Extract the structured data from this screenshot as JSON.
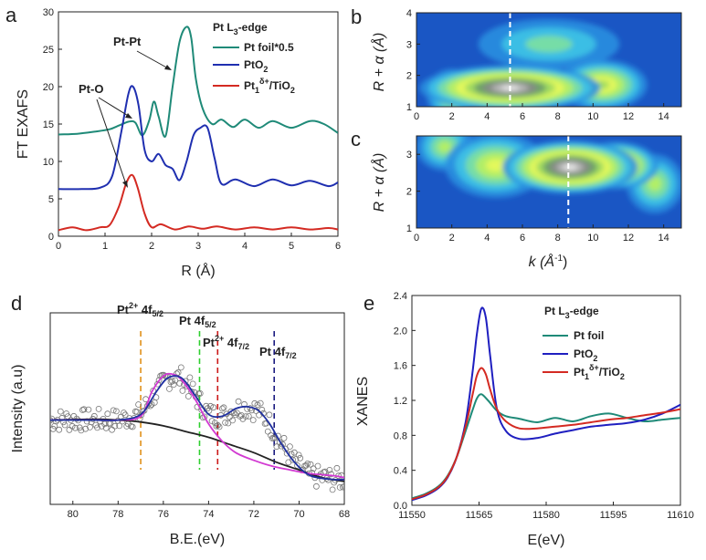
{
  "chart_data": [
    {
      "panel": "a",
      "type": "line",
      "title": "Pt L3-edge",
      "xlabel": "R (Å)",
      "ylabel": "FT EXAFS",
      "xlim": [
        0,
        6
      ],
      "ylim": [
        0,
        30
      ],
      "xticks": [
        "0",
        "1",
        "2",
        "3",
        "4",
        "5",
        "6"
      ],
      "yticks": [
        "0",
        "5",
        "10",
        "15",
        "20",
        "25",
        "30"
      ],
      "series": [
        {
          "name": "Pt foil*0.5",
          "color": "#1f8a78",
          "x": [
            0.0,
            0.4,
            0.8,
            1.1,
            1.3,
            1.5,
            1.65,
            1.8,
            1.95,
            2.05,
            2.15,
            2.3,
            2.45,
            2.6,
            2.75,
            2.85,
            2.95,
            3.1,
            3.3,
            3.5,
            3.75,
            4.0,
            4.3,
            4.6,
            5.0,
            5.4,
            5.7,
            6.0
          ],
          "y": [
            13.6,
            13.7,
            14.0,
            14.3,
            14.8,
            15.3,
            15.2,
            13.5,
            15.5,
            18.0,
            16.0,
            13.4,
            20.0,
            26.0,
            28.0,
            26.5,
            21.0,
            17.0,
            15.0,
            15.6,
            14.6,
            15.6,
            14.5,
            15.4,
            14.5,
            15.4,
            15.0,
            13.8
          ]
        },
        {
          "name": "PtO2",
          "color": "#1f2fb0",
          "x": [
            0.0,
            0.5,
            0.9,
            1.15,
            1.35,
            1.5,
            1.6,
            1.72,
            1.85,
            2.0,
            2.15,
            2.3,
            2.45,
            2.6,
            2.75,
            2.9,
            3.05,
            3.2,
            3.35,
            3.5,
            3.8,
            4.2,
            4.6,
            5.0,
            5.4,
            5.8,
            6.0
          ],
          "y": [
            6.3,
            6.3,
            6.5,
            8.0,
            14.0,
            19.0,
            20.0,
            17.5,
            11.5,
            10.0,
            11.0,
            9.5,
            9.0,
            7.5,
            10.0,
            13.5,
            14.5,
            14.5,
            10.5,
            7.0,
            7.6,
            6.7,
            7.6,
            6.8,
            7.4,
            6.7,
            7.2
          ]
        },
        {
          "name": "Pt1δ+/TiO2",
          "color": "#d42a22",
          "x": [
            0.0,
            0.3,
            0.6,
            0.9,
            1.1,
            1.3,
            1.45,
            1.58,
            1.7,
            1.85,
            2.0,
            2.2,
            2.5,
            2.8,
            3.1,
            3.4,
            3.8,
            4.2,
            4.6,
            5.0,
            5.4,
            5.8,
            6.0
          ],
          "y": [
            0.8,
            1.2,
            0.8,
            1.2,
            1.5,
            4.0,
            7.0,
            8.2,
            6.5,
            3.0,
            1.2,
            1.6,
            0.9,
            1.3,
            1.0,
            1.3,
            0.9,
            1.2,
            0.9,
            1.2,
            0.9,
            1.1,
            0.9
          ]
        }
      ],
      "annotations": [
        "Pt-Pt",
        "Pt-O"
      ]
    },
    {
      "panel": "b",
      "type": "heatmap",
      "ylabel": "R + α (Å)",
      "xlim": [
        0,
        15
      ],
      "ylim": [
        1,
        4
      ],
      "xticks": [
        "0",
        "2",
        "4",
        "6",
        "8",
        "10",
        "12",
        "14"
      ],
      "yticks": [
        "1",
        "2",
        "3",
        "4"
      ],
      "marker_k": 5.3,
      "blobs": [
        {
          "k": 5.3,
          "r": 1.6,
          "sk": 3.2,
          "sr": 0.45,
          "a": 1.0
        },
        {
          "k": 10.5,
          "r": 1.7,
          "sk": 1.6,
          "sr": 0.5,
          "a": 0.55
        },
        {
          "k": 2.0,
          "r": 1.4,
          "sk": 0.9,
          "sr": 0.5,
          "a": 0.45
        },
        {
          "k": 7.5,
          "r": 3.0,
          "sk": 2.5,
          "sr": 0.5,
          "a": 0.25
        }
      ]
    },
    {
      "panel": "c",
      "type": "heatmap",
      "xlabel": "k (Å-1)",
      "ylabel": "R + α (Å)",
      "xlim": [
        0,
        15
      ],
      "ylim": [
        1,
        3.5
      ],
      "xticks": [
        "0",
        "2",
        "4",
        "6",
        "8",
        "10",
        "12",
        "14"
      ],
      "yticks": [
        "1",
        "2",
        "3"
      ],
      "marker_k": 8.6,
      "blobs": [
        {
          "k": 8.7,
          "r": 2.65,
          "sk": 2.4,
          "sr": 0.45,
          "a": 1.0
        },
        {
          "k": 11.3,
          "r": 2.7,
          "sk": 1.5,
          "sr": 0.4,
          "a": 0.8
        },
        {
          "k": 4.5,
          "r": 2.7,
          "sk": 1.8,
          "sr": 0.55,
          "a": 0.5
        },
        {
          "k": 1.6,
          "r": 3.2,
          "sk": 1.0,
          "sr": 0.4,
          "a": 0.35
        },
        {
          "k": 13.5,
          "r": 2.2,
          "sk": 1.0,
          "sr": 0.5,
          "a": 0.35
        }
      ]
    },
    {
      "panel": "d",
      "type": "scatter",
      "xlabel": "B.E.(eV)",
      "ylabel": "Intensity (a.u)",
      "xlim": [
        81,
        68
      ],
      "ylim": [
        0,
        100
      ],
      "xticks": [
        "80",
        "78",
        "76",
        "74",
        "72",
        "70",
        "68"
      ],
      "reference_lines": [
        {
          "label": "Pt2+ 4f5/2",
          "x": 77.0,
          "color": "#e0901a"
        },
        {
          "label": "Pt 4f5/2",
          "x": 74.4,
          "color": "#2fcf2f"
        },
        {
          "label": "Pt2+ 4f7/2",
          "x": 73.6,
          "color": "#cc1a1a"
        },
        {
          "label": "Pt 4f7/2",
          "x": 71.1,
          "color": "#1a1a80"
        }
      ],
      "fit_magenta": {
        "x": [
          81,
          79,
          78,
          77,
          76.5,
          76,
          75.6,
          75.2,
          74.6,
          74,
          73.4,
          72.8,
          72,
          71.2,
          70.4,
          69.5,
          68.5,
          68
        ],
        "y": [
          44,
          44,
          44,
          46,
          59,
          67,
          68,
          65,
          55,
          42,
          33,
          27,
          23,
          20,
          18,
          16,
          15,
          14
        ]
      },
      "fit_blue": {
        "x": [
          81,
          79,
          78,
          77,
          76.3,
          75.8,
          75.2,
          74.6,
          74,
          73.4,
          72.8,
          72.3,
          71.8,
          71.3,
          70.8,
          70.2,
          69.5,
          68.5,
          68
        ],
        "y": [
          44,
          44,
          44,
          47,
          59,
          66,
          66,
          57,
          47,
          46,
          50,
          51,
          49,
          42,
          32,
          22,
          15,
          13,
          13
        ]
      },
      "background_black": {
        "x": [
          81,
          79,
          78,
          77,
          76,
          75,
          74,
          73,
          72,
          71,
          70,
          69,
          68
        ],
        "y": [
          44,
          44.5,
          44,
          43,
          41,
          38,
          35,
          31,
          27,
          22,
          18,
          14,
          12
        ]
      },
      "points_range": [
        81,
        68
      ]
    },
    {
      "panel": "e",
      "type": "line",
      "title": "Pt L3-edge",
      "xlabel": "E(eV)",
      "ylabel": "XANES",
      "xlim": [
        11550,
        11610
      ],
      "ylim": [
        0,
        2.4
      ],
      "xticks": [
        "11550",
        "11565",
        "11580",
        "11595",
        "11610"
      ],
      "yticks": [
        "0.0",
        "0.4",
        "0.8",
        "1.2",
        "1.6",
        "2.0",
        "2.4"
      ],
      "series": [
        {
          "name": "Pt foil",
          "color": "#1f8a78",
          "x": [
            11550,
            11553,
            11556,
            11558,
            11560,
            11562,
            11563.5,
            11564.5,
            11565.5,
            11567,
            11569,
            11571,
            11574,
            11578,
            11582,
            11586,
            11590,
            11594,
            11598,
            11602,
            11606,
            11610
          ],
          "y": [
            0.08,
            0.13,
            0.22,
            0.34,
            0.55,
            0.85,
            1.08,
            1.22,
            1.27,
            1.2,
            1.08,
            1.02,
            0.99,
            0.95,
            1.0,
            0.96,
            1.02,
            1.05,
            1.0,
            0.96,
            0.98,
            1.0
          ]
        },
        {
          "name": "PtO2",
          "color": "#1f1fc0",
          "x": [
            11550,
            11553,
            11556,
            11558,
            11560,
            11562,
            11563.5,
            11564.5,
            11565.5,
            11566.5,
            11567.5,
            11569,
            11571,
            11574,
            11578,
            11582,
            11586,
            11590,
            11594,
            11598,
            11602,
            11606,
            11610
          ],
          "y": [
            0.06,
            0.11,
            0.2,
            0.32,
            0.55,
            0.95,
            1.5,
            1.95,
            2.25,
            2.15,
            1.7,
            1.1,
            0.85,
            0.76,
            0.77,
            0.82,
            0.86,
            0.9,
            0.92,
            0.94,
            0.98,
            1.05,
            1.15
          ]
        },
        {
          "name": "Pt1δ+/TiO2",
          "color": "#d42a22",
          "x": [
            11550,
            11553,
            11556,
            11558,
            11560,
            11562,
            11563.5,
            11564.5,
            11565.5,
            11566.5,
            11567.5,
            11569,
            11571,
            11574,
            11578,
            11582,
            11586,
            11590,
            11594,
            11598,
            11602,
            11606,
            11610
          ],
          "y": [
            0.07,
            0.12,
            0.21,
            0.33,
            0.55,
            0.9,
            1.25,
            1.48,
            1.57,
            1.5,
            1.32,
            1.1,
            0.96,
            0.88,
            0.88,
            0.9,
            0.92,
            0.95,
            0.98,
            1.0,
            1.03,
            1.06,
            1.1
          ]
        }
      ]
    }
  ],
  "labels": {
    "panel_a": "a",
    "panel_b": "b",
    "panel_c": "c",
    "panel_d": "d",
    "panel_e": "e",
    "a_title": "Pt L",
    "a_title_sub": "3",
    "a_title_end": "-edge",
    "a_leg1": "Pt foil*0.5",
    "a_leg2": "PtO",
    "a_leg2_sub": "2",
    "a_leg3_base": "Pt",
    "a_leg3_sub": "1",
    "a_leg3_sup": "δ+",
    "a_leg3_end": "/TiO",
    "a_leg3_sub2": "2",
    "a_ann_ptpt": "Pt-Pt",
    "a_ann_pto": "Pt-O",
    "a_xlabel": "R (Å)",
    "a_ylabel": "FT EXAFS",
    "bc_ylabel_main": "R + α (Å)",
    "c_xlabel": "k (Å",
    "c_xlabel_sup": "-1",
    "c_xlabel_end": ")",
    "d_xlabel": "B.E.(eV)",
    "d_ylabel": "Intensity (a.u)",
    "d_l1": "Pt",
    "d_l1_sup": "2+",
    "d_l1_end": " 4f",
    "d_l1_sub": "5/2",
    "d_l2": "Pt 4f",
    "d_l2_sub": "5/2",
    "d_l3": "Pt",
    "d_l3_sup": "2+",
    "d_l3_end": " 4f",
    "d_l3_sub": "7/2",
    "d_l4": "Pt 4f",
    "d_l4_sub": "7/2",
    "e_title": "Pt L",
    "e_title_sub": "3",
    "e_title_end": "-edge",
    "e_leg1": "Pt foil",
    "e_leg2": "PtO",
    "e_leg2_sub": "2",
    "e_leg3_base": "Pt",
    "e_leg3_sub": "1",
    "e_leg3_sup": "δ+",
    "e_leg3_end": "/TiO",
    "e_leg3_sub2": "2",
    "e_xlabel": "E(eV)",
    "e_ylabel": "XANES"
  }
}
